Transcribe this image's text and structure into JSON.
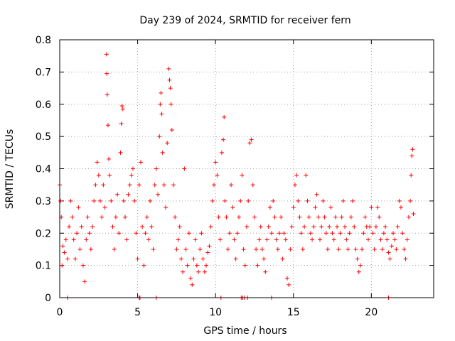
{
  "chart_data": {
    "type": "scatter",
    "title": "Day 239 of 2024, SRMTID for receiver fern",
    "xlabel": "GPS time / hours",
    "ylabel": "SRMTID / TECUs",
    "xlim": [
      0,
      24
    ],
    "ylim": [
      0,
      0.8
    ],
    "xticks": [
      0,
      5,
      10,
      15,
      20
    ],
    "xtick_labels": [
      "0",
      "5",
      "10",
      "15",
      "20"
    ],
    "yticks": [
      0,
      0.1,
      0.2,
      0.3,
      0.4,
      0.5,
      0.6,
      0.7,
      0.8
    ],
    "ytick_labels": [
      "0",
      "0.1",
      "0.2",
      "0.3",
      "0.4",
      "0.5",
      "0.6",
      "0.7",
      "0.8"
    ],
    "grid": true,
    "marker": "+",
    "color": "#ff0000",
    "series": [
      {
        "name": "SRMTID",
        "points": [
          [
            0.0,
            0.35
          ],
          [
            0.05,
            0.3
          ],
          [
            0.1,
            0.25
          ],
          [
            0.15,
            0.1
          ],
          [
            0.2,
            0.16
          ],
          [
            0.3,
            0.14
          ],
          [
            0.4,
            0.18
          ],
          [
            0.5,
            0.12
          ],
          [
            0.6,
            0.22
          ],
          [
            0.7,
            0.3
          ],
          [
            0.8,
            0.25
          ],
          [
            0.9,
            0.18
          ],
          [
            1.0,
            0.12
          ],
          [
            1.1,
            0.2
          ],
          [
            1.2,
            0.28
          ],
          [
            1.3,
            0.15
          ],
          [
            1.4,
            0.22
          ],
          [
            1.5,
            0.1
          ],
          [
            1.6,
            0.05
          ],
          [
            1.7,
            0.18
          ],
          [
            1.8,
            0.25
          ],
          [
            1.9,
            0.2
          ],
          [
            2.0,
            0.15
          ],
          [
            2.1,
            0.22
          ],
          [
            2.2,
            0.3
          ],
          [
            2.3,
            0.35
          ],
          [
            2.4,
            0.42
          ],
          [
            2.5,
            0.38
          ],
          [
            2.6,
            0.3
          ],
          [
            2.7,
            0.25
          ],
          [
            2.8,
            0.35
          ],
          [
            2.9,
            0.28
          ],
          [
            3.0,
            0.755
          ],
          [
            3.02,
            0.695
          ],
          [
            3.05,
            0.63
          ],
          [
            3.1,
            0.535
          ],
          [
            3.15,
            0.43
          ],
          [
            3.2,
            0.38
          ],
          [
            3.3,
            0.3
          ],
          [
            3.4,
            0.22
          ],
          [
            3.5,
            0.15
          ],
          [
            3.6,
            0.25
          ],
          [
            3.7,
            0.32
          ],
          [
            3.8,
            0.2
          ],
          [
            3.9,
            0.45
          ],
          [
            3.95,
            0.54
          ],
          [
            4.0,
            0.595
          ],
          [
            4.05,
            0.585
          ],
          [
            4.1,
            0.3
          ],
          [
            4.2,
            0.25
          ],
          [
            4.3,
            0.18
          ],
          [
            4.4,
            0.32
          ],
          [
            4.5,
            0.35
          ],
          [
            4.6,
            0.38
          ],
          [
            4.7,
            0.4
          ],
          [
            4.8,
            0.3
          ],
          [
            4.9,
            0.2
          ],
          [
            5.0,
            0.12
          ],
          [
            5.1,
            0.35
          ],
          [
            5.2,
            0.42
          ],
          [
            5.3,
            0.22
          ],
          [
            5.4,
            0.1
          ],
          [
            5.5,
            0.2
          ],
          [
            5.6,
            0.25
          ],
          [
            5.7,
            0.18
          ],
          [
            5.8,
            0.3
          ],
          [
            5.9,
            0.22
          ],
          [
            6.0,
            0.15
          ],
          [
            6.1,
            0.35
          ],
          [
            6.2,
            0.4
          ],
          [
            6.3,
            0.32
          ],
          [
            6.4,
            0.5
          ],
          [
            6.45,
            0.6
          ],
          [
            6.5,
            0.635
          ],
          [
            6.55,
            0.57
          ],
          [
            6.6,
            0.45
          ],
          [
            6.7,
            0.35
          ],
          [
            6.8,
            0.28
          ],
          [
            6.9,
            0.48
          ],
          [
            7.0,
            0.71
          ],
          [
            7.05,
            0.675
          ],
          [
            7.1,
            0.65
          ],
          [
            7.15,
            0.6
          ],
          [
            7.2,
            0.52
          ],
          [
            7.3,
            0.35
          ],
          [
            7.4,
            0.25
          ],
          [
            7.5,
            0.15
          ],
          [
            7.6,
            0.18
          ],
          [
            7.7,
            0.22
          ],
          [
            7.8,
            0.12
          ],
          [
            7.9,
            0.08
          ],
          [
            8.0,
            0.4
          ],
          [
            8.1,
            0.15
          ],
          [
            8.2,
            0.1
          ],
          [
            8.3,
            0.2
          ],
          [
            8.4,
            0.06
          ],
          [
            8.5,
            0.04
          ],
          [
            8.6,
            0.12
          ],
          [
            8.7,
            0.18
          ],
          [
            8.8,
            0.1
          ],
          [
            8.9,
            0.08
          ],
          [
            9.0,
            0.15
          ],
          [
            9.1,
            0.2
          ],
          [
            9.2,
            0.12
          ],
          [
            9.3,
            0.08
          ],
          [
            9.4,
            0.1
          ],
          [
            9.5,
            0.14
          ],
          [
            9.6,
            0.16
          ],
          [
            9.7,
            0.22
          ],
          [
            9.8,
            0.3
          ],
          [
            9.9,
            0.35
          ],
          [
            10.0,
            0.42
          ],
          [
            10.1,
            0.38
          ],
          [
            10.2,
            0.25
          ],
          [
            10.3,
            0.18
          ],
          [
            10.4,
            0.45
          ],
          [
            10.5,
            0.49
          ],
          [
            10.55,
            0.56
          ],
          [
            10.6,
            0.3
          ],
          [
            10.7,
            0.25
          ],
          [
            10.8,
            0.15
          ],
          [
            10.9,
            0.2
          ],
          [
            11.0,
            0.35
          ],
          [
            11.1,
            0.28
          ],
          [
            11.2,
            0.18
          ],
          [
            11.3,
            0.12
          ],
          [
            11.4,
            0.2
          ],
          [
            11.5,
            0.25
          ],
          [
            11.6,
            0.3
          ],
          [
            11.7,
            0.38
          ],
          [
            11.8,
            0.15
          ],
          [
            11.9,
            0.1
          ],
          [
            12.0,
            0.22
          ],
          [
            12.1,
            0.3
          ],
          [
            12.2,
            0.48
          ],
          [
            12.3,
            0.49
          ],
          [
            12.4,
            0.35
          ],
          [
            12.5,
            0.25
          ],
          [
            12.6,
            0.15
          ],
          [
            12.7,
            0.1
          ],
          [
            12.8,
            0.18
          ],
          [
            12.9,
            0.22
          ],
          [
            13.0,
            0.15
          ],
          [
            13.1,
            0.12
          ],
          [
            13.2,
            0.08
          ],
          [
            13.3,
            0.18
          ],
          [
            13.4,
            0.22
          ],
          [
            13.5,
            0.28
          ],
          [
            13.6,
            0.2
          ],
          [
            13.7,
            0.3
          ],
          [
            13.8,
            0.25
          ],
          [
            13.9,
            0.18
          ],
          [
            14.0,
            0.15
          ],
          [
            14.1,
            0.2
          ],
          [
            14.2,
            0.25
          ],
          [
            14.3,
            0.12
          ],
          [
            14.4,
            0.2
          ],
          [
            14.5,
            0.18
          ],
          [
            14.6,
            0.06
          ],
          [
            14.7,
            0.04
          ],
          [
            14.8,
            0.15
          ],
          [
            14.9,
            0.22
          ],
          [
            15.0,
            0.28
          ],
          [
            15.1,
            0.35
          ],
          [
            15.2,
            0.38
          ],
          [
            15.3,
            0.3
          ],
          [
            15.4,
            0.25
          ],
          [
            15.5,
            0.2
          ],
          [
            15.6,
            0.15
          ],
          [
            15.7,
            0.22
          ],
          [
            15.8,
            0.38
          ],
          [
            15.9,
            0.3
          ],
          [
            16.0,
            0.25
          ],
          [
            16.1,
            0.2
          ],
          [
            16.2,
            0.18
          ],
          [
            16.3,
            0.22
          ],
          [
            16.4,
            0.28
          ],
          [
            16.5,
            0.32
          ],
          [
            16.6,
            0.25
          ],
          [
            16.7,
            0.18
          ],
          [
            16.8,
            0.22
          ],
          [
            16.9,
            0.3
          ],
          [
            17.0,
            0.25
          ],
          [
            17.1,
            0.2
          ],
          [
            17.2,
            0.15
          ],
          [
            17.3,
            0.22
          ],
          [
            17.4,
            0.28
          ],
          [
            17.5,
            0.2
          ],
          [
            17.6,
            0.18
          ],
          [
            17.7,
            0.25
          ],
          [
            17.8,
            0.22
          ],
          [
            17.9,
            0.15
          ],
          [
            18.0,
            0.2
          ],
          [
            18.1,
            0.25
          ],
          [
            18.2,
            0.3
          ],
          [
            18.3,
            0.22
          ],
          [
            18.4,
            0.18
          ],
          [
            18.5,
            0.15
          ],
          [
            18.6,
            0.2
          ],
          [
            18.7,
            0.25
          ],
          [
            18.8,
            0.3
          ],
          [
            18.9,
            0.22
          ],
          [
            19.0,
            0.15
          ],
          [
            19.1,
            0.12
          ],
          [
            19.2,
            0.08
          ],
          [
            19.3,
            0.1
          ],
          [
            19.4,
            0.15
          ],
          [
            19.5,
            0.2
          ],
          [
            19.6,
            0.25
          ],
          [
            19.7,
            0.22
          ],
          [
            19.8,
            0.18
          ],
          [
            19.9,
            0.22
          ],
          [
            20.0,
            0.28
          ],
          [
            20.1,
            0.2
          ],
          [
            20.2,
            0.15
          ],
          [
            20.3,
            0.22
          ],
          [
            20.4,
            0.28
          ],
          [
            20.5,
            0.25
          ],
          [
            20.6,
            0.18
          ],
          [
            20.7,
            0.15
          ],
          [
            20.8,
            0.2
          ],
          [
            20.9,
            0.22
          ],
          [
            21.0,
            0.18
          ],
          [
            21.1,
            0.14
          ],
          [
            21.2,
            0.12
          ],
          [
            21.3,
            0.16
          ],
          [
            21.4,
            0.2
          ],
          [
            21.5,
            0.18
          ],
          [
            21.6,
            0.15
          ],
          [
            21.7,
            0.22
          ],
          [
            21.8,
            0.3
          ],
          [
            21.9,
            0.28
          ],
          [
            22.0,
            0.2
          ],
          [
            22.1,
            0.15
          ],
          [
            22.2,
            0.12
          ],
          [
            22.3,
            0.18
          ],
          [
            22.4,
            0.25
          ],
          [
            22.5,
            0.3
          ],
          [
            22.55,
            0.38
          ],
          [
            22.6,
            0.44
          ],
          [
            22.65,
            0.46
          ],
          [
            22.7,
            0.26
          ],
          [
            0.5,
            0.0
          ],
          [
            5.1,
            0.0
          ],
          [
            5.15,
            0.0
          ],
          [
            6.2,
            0.0
          ],
          [
            10.35,
            0.0
          ],
          [
            11.65,
            0.0
          ],
          [
            11.75,
            0.0
          ],
          [
            11.85,
            0.0
          ],
          [
            12.05,
            0.0
          ],
          [
            13.6,
            0.0
          ],
          [
            21.1,
            0.0
          ]
        ]
      }
    ]
  }
}
